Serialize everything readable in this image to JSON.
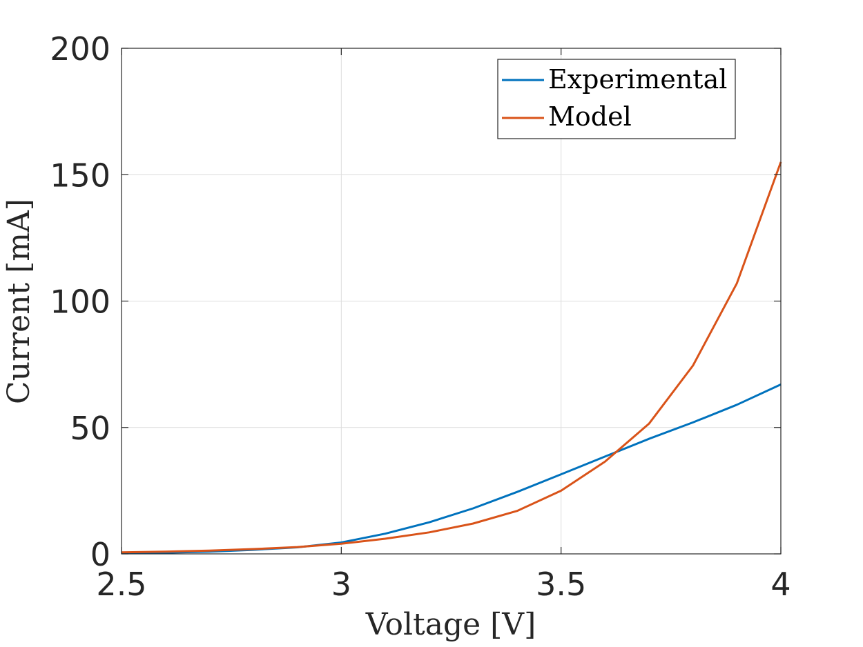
{
  "chart_data": {
    "type": "line",
    "xlabel": "Voltage [V]",
    "ylabel": "Current [mA]",
    "xlim": [
      2.5,
      4
    ],
    "ylim": [
      0,
      200
    ],
    "xticks": [
      2.5,
      3,
      3.5,
      4
    ],
    "xtick_labels": [
      "2.5",
      "3",
      "3.5",
      "4"
    ],
    "yticks": [
      0,
      50,
      100,
      150,
      200
    ],
    "ytick_labels": [
      "0",
      "50",
      "100",
      "150",
      "200"
    ],
    "grid": true,
    "legend_position": "top-right",
    "x": [
      2.5,
      2.6,
      2.7,
      2.8,
      2.9,
      3.0,
      3.1,
      3.2,
      3.3,
      3.4,
      3.5,
      3.6,
      3.7,
      3.8,
      3.9,
      4.0
    ],
    "series": [
      {
        "name": "Experimental",
        "color": "#0072BD",
        "values": [
          0.3,
          0.5,
          0.9,
          1.6,
          2.6,
          4.5,
          8,
          12.5,
          18,
          24.5,
          31.5,
          38.5,
          45.5,
          52,
          59,
          67
        ]
      },
      {
        "name": "Model",
        "color": "#D95319",
        "values": [
          0.6,
          0.9,
          1.3,
          1.9,
          2.7,
          4,
          6,
          8.5,
          12,
          17,
          25,
          36.5,
          51.5,
          74.5,
          107,
          155
        ]
      }
    ]
  }
}
